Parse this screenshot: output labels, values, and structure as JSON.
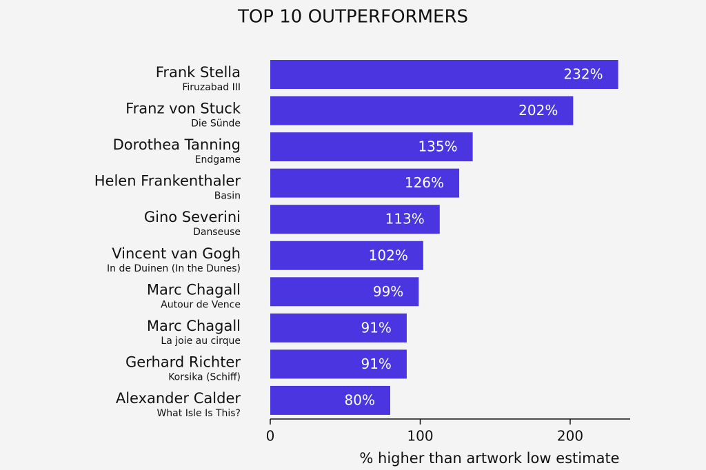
{
  "chart_data": {
    "type": "barh",
    "title": "TOP 10 OUTPERFORMERS",
    "x_label": "% higher than artwork low estimate",
    "categories": [
      "Frank Stella",
      "Franz von Stuck",
      "Dorothea Tanning",
      "Helen Frankenthaler",
      "Gino Severini",
      "Vincent van Gogh",
      "Marc Chagall",
      "Marc Chagall",
      "Gerhard Richter",
      "Alexander Calder"
    ],
    "artworks": [
      "Firuzabad III",
      "Die Sünde",
      "Endgame",
      "Basin",
      "Danseuse",
      "In de Duinen (In the Dunes)",
      "Autour de Vence",
      "La joie au cirque",
      "Korsika (Schiff)",
      "What Isle Is This?"
    ],
    "values": [
      232,
      202,
      135,
      126,
      113,
      102,
      99,
      91,
      91,
      80
    ],
    "value_labels": [
      "232%",
      "202%",
      "135%",
      "126%",
      "113%",
      "102%",
      "99%",
      "91%",
      "91%",
      "80%"
    ],
    "color": "#4a35e0",
    "xlim": [
      0,
      240
    ],
    "xticks": [
      0,
      100,
      200
    ],
    "grid": false
  }
}
